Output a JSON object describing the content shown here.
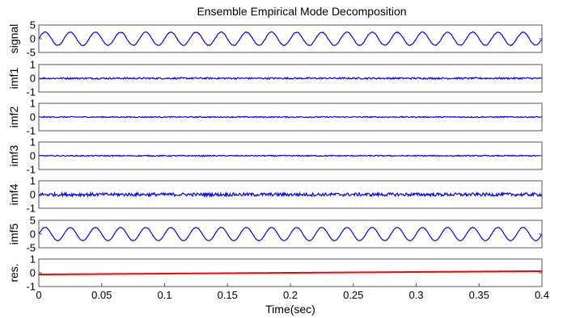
{
  "chart_data": {
    "type": "line",
    "title": "Ensemble Empirical Mode Decomposition",
    "xlabel": "Time(sec)",
    "xlim": [
      0,
      0.4
    ],
    "xticks": [
      "0",
      "0.05",
      "0.1",
      "0.15",
      "0.2",
      "0.25",
      "0.3",
      "0.35",
      "0.4"
    ],
    "panels": [
      {
        "ylabel": "signal",
        "ylim": [
          -5,
          5
        ],
        "yticks": [
          "5",
          "0",
          "-5"
        ],
        "color": "#0000ff",
        "signal": {
          "kind": "sine",
          "amplitude": 2.4,
          "frequency_hz": 50,
          "noise": 0.15
        }
      },
      {
        "ylabel": "imf1",
        "ylim": [
          -1,
          1
        ],
        "yticks": [
          "1",
          "0",
          "-1"
        ],
        "color": "#0000ff",
        "signal": {
          "kind": "noise",
          "amplitude": 0.06
        }
      },
      {
        "ylabel": "imf2",
        "ylim": [
          -1,
          1
        ],
        "yticks": [
          "1",
          "0",
          "-1"
        ],
        "color": "#0000ff",
        "signal": {
          "kind": "noise",
          "amplitude": 0.04
        }
      },
      {
        "ylabel": "imf3",
        "ylim": [
          -1,
          1
        ],
        "yticks": [
          "1",
          "0",
          "-1"
        ],
        "color": "#0000ff",
        "signal": {
          "kind": "noise",
          "amplitude": 0.04
        }
      },
      {
        "ylabel": "imf4",
        "ylim": [
          -1,
          1
        ],
        "yticks": [
          "1",
          "0",
          "-1"
        ],
        "color": "#0000ff",
        "signal": {
          "kind": "noise",
          "amplitude": 0.12
        }
      },
      {
        "ylabel": "imf5",
        "ylim": [
          -5,
          5
        ],
        "yticks": [
          "5",
          "0",
          "-5"
        ],
        "color": "#0000ff",
        "signal": {
          "kind": "sine",
          "amplitude": 2.4,
          "frequency_hz": 50,
          "noise": 0.05
        }
      },
      {
        "ylabel": "res.",
        "ylim": [
          -1,
          1
        ],
        "yticks": [
          "1",
          "0",
          "-1"
        ],
        "color": "#ff0000",
        "signal": {
          "kind": "trend",
          "start": -0.12,
          "end": 0.12
        }
      }
    ]
  }
}
